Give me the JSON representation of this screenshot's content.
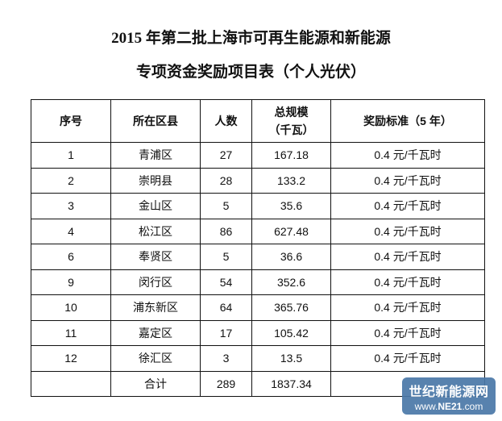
{
  "title_line1": "2015 年第二批上海市可再生能源和新能源",
  "title_line2": "专项资金奖励项目表（个人光伏）",
  "table": {
    "headers": [
      "序号",
      "所在区县",
      "人数",
      "总规模",
      "奖励标准（5 年）"
    ],
    "header_unit": "（千瓦）",
    "rows": [
      [
        "1",
        "青浦区",
        "27",
        "167.18",
        "0.4 元/千瓦时"
      ],
      [
        "2",
        "崇明县",
        "28",
        "133.2",
        "0.4 元/千瓦时"
      ],
      [
        "3",
        "金山区",
        "5",
        "35.6",
        "0.4 元/千瓦时"
      ],
      [
        "4",
        "松江区",
        "86",
        "627.48",
        "0.4 元/千瓦时"
      ],
      [
        "6",
        "奉贤区",
        "5",
        "36.6",
        "0.4 元/千瓦时"
      ],
      [
        "9",
        "闵行区",
        "54",
        "352.6",
        "0.4 元/千瓦时"
      ],
      [
        "10",
        "浦东新区",
        "64",
        "365.76",
        "0.4 元/千瓦时"
      ],
      [
        "11",
        "嘉定区",
        "17",
        "105.42",
        "0.4 元/千瓦时"
      ],
      [
        "12",
        "徐汇区",
        "3",
        "13.5",
        "0.4 元/千瓦时"
      ]
    ],
    "total": [
      "",
      "合计",
      "289",
      "1837.34",
      ""
    ]
  },
  "watermark": {
    "line1": "世纪新能源网",
    "line2": "www.NE21.com",
    "color": "#4a78a8"
  }
}
